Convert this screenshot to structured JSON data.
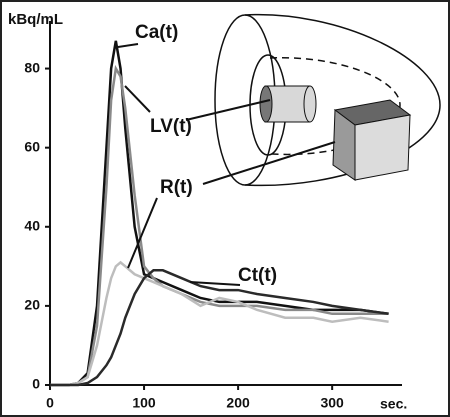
{
  "chart_data": {
    "type": "line",
    "y_label": "kBq/mL",
    "x_label": "sec.",
    "x": [
      0,
      20,
      30,
      40,
      50,
      60,
      65,
      70,
      75,
      80,
      90,
      100,
      110,
      120,
      140,
      160,
      180,
      200,
      220,
      250,
      280,
      300,
      330,
      360
    ],
    "series": [
      {
        "name": "Ca(t)",
        "color": "#111111",
        "values": [
          0,
          0,
          0.5,
          3,
          20,
          60,
          80,
          87,
          80,
          65,
          40,
          28,
          27,
          26,
          24,
          22,
          21,
          21,
          21,
          20,
          19,
          19,
          19,
          18
        ]
      },
      {
        "name": "LV(t)",
        "color": "#8a8a8a",
        "values": [
          0,
          0,
          0.5,
          2,
          15,
          50,
          72,
          80,
          78,
          70,
          48,
          30,
          27,
          25,
          23,
          21,
          20,
          20,
          20,
          19,
          19,
          18,
          18,
          18
        ]
      },
      {
        "name": "R(t)",
        "color": "#bdbdbd",
        "values": [
          0,
          0,
          0.5,
          2,
          10,
          22,
          27,
          30,
          31,
          30,
          28,
          27,
          26,
          25,
          23,
          20,
          22,
          21,
          19,
          17,
          17,
          16,
          17,
          16
        ]
      },
      {
        "name": "Ct(t)",
        "color": "#2a2a2a",
        "values": [
          0,
          0,
          0,
          0.5,
          2,
          5,
          7,
          10,
          13,
          17,
          23,
          27,
          29,
          29,
          27,
          25,
          24,
          24,
          23,
          22,
          21,
          20,
          19,
          18
        ]
      }
    ],
    "xlim": [
      0,
      370
    ],
    "ylim": [
      0,
      90
    ],
    "xticks": [
      0,
      100,
      200,
      300
    ],
    "yticks": [
      0,
      20,
      40,
      60,
      80
    ]
  }
}
